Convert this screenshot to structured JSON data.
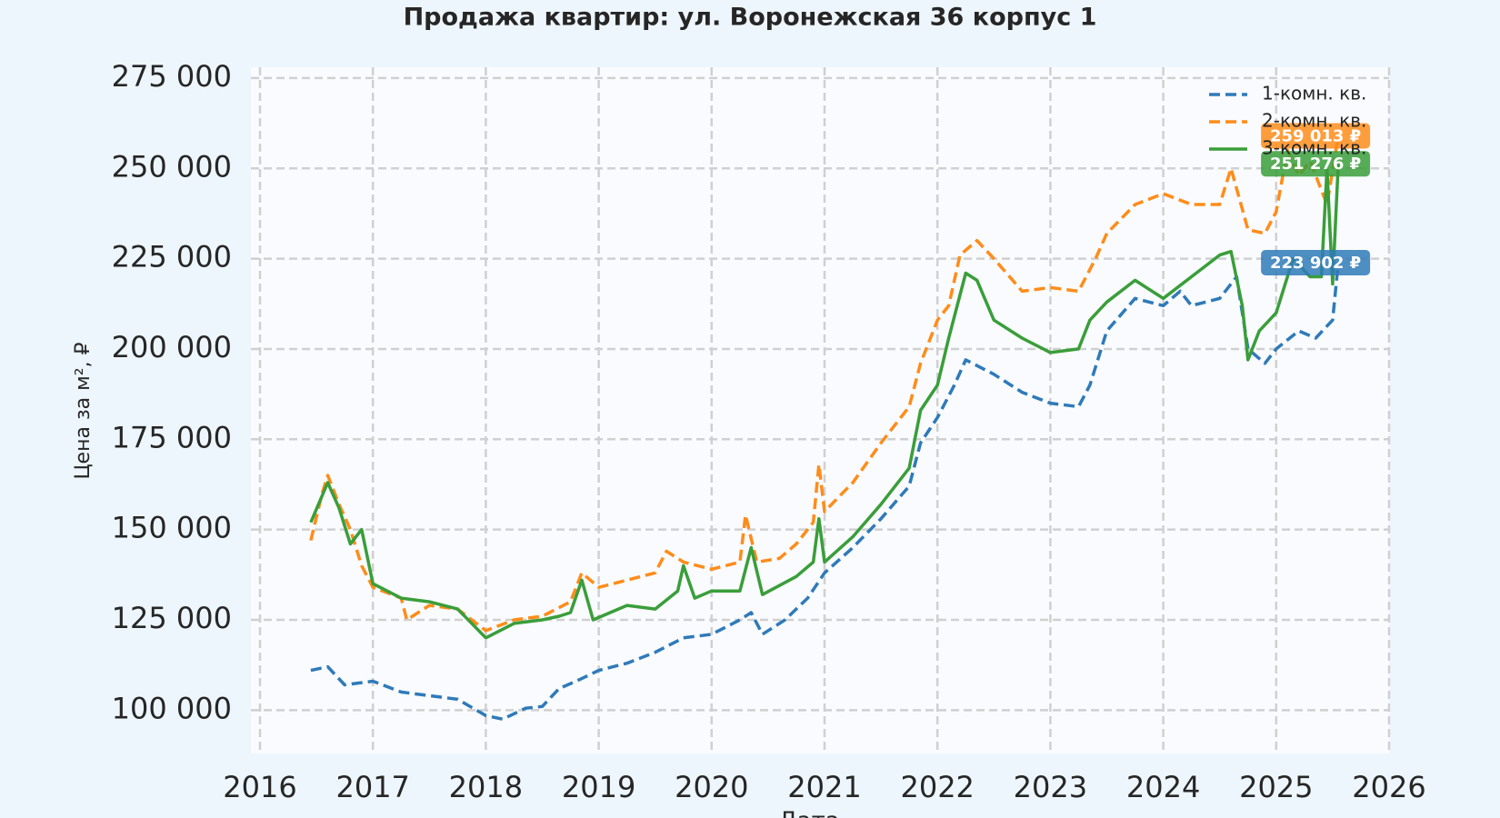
{
  "chart_data": {
    "type": "line",
    "title": "Продажа квартир: ул. Воронежская 36 корпус 1",
    "xlabel": "Дата",
    "ylabel": "Цена за м², ₽",
    "xlim": [
      2016,
      2026
    ],
    "xticks": [
      2016,
      2017,
      2018,
      2019,
      2020,
      2021,
      2022,
      2023,
      2024,
      2025,
      2026
    ],
    "ylim": [
      88000,
      278000
    ],
    "yticks": [
      {
        "value": 100000,
        "label": "100 000"
      },
      {
        "value": 125000,
        "label": "125 000"
      },
      {
        "value": 150000,
        "label": "150 000"
      },
      {
        "value": 175000,
        "label": "175 000"
      },
      {
        "value": 200000,
        "label": "200 000"
      },
      {
        "value": 225000,
        "label": "225 000"
      },
      {
        "value": 250000,
        "label": "250 000"
      },
      {
        "value": 275000,
        "label": "275 000"
      }
    ],
    "grid": true,
    "legend": "upper right",
    "series": [
      {
        "name": "1-комн. кв.",
        "color": "#2f7ab9",
        "linestyle": "dashed",
        "end_label": "223 902 ₽",
        "x": [
          2016.45,
          2016.6,
          2016.75,
          2017.0,
          2017.25,
          2017.5,
          2017.75,
          2018.0,
          2018.15,
          2018.35,
          2018.5,
          2018.65,
          2018.8,
          2019.0,
          2019.25,
          2019.5,
          2019.75,
          2020.0,
          2020.25,
          2020.35,
          2020.45,
          2020.65,
          2020.85,
          2021.0,
          2021.25,
          2021.5,
          2021.75,
          2021.85,
          2022.0,
          2022.15,
          2022.25,
          2022.5,
          2022.75,
          2023.0,
          2023.25,
          2023.35,
          2023.5,
          2023.75,
          2024.0,
          2024.15,
          2024.25,
          2024.5,
          2024.65,
          2024.75,
          2024.9,
          2025.0,
          2025.2,
          2025.35,
          2025.5,
          2025.55
        ],
        "values": [
          111000,
          112000,
          107000,
          108000,
          105000,
          104000,
          103000,
          98500,
          97500,
          100500,
          101000,
          106000,
          108000,
          111000,
          113000,
          116000,
          120000,
          121000,
          125000,
          127000,
          121000,
          125000,
          131000,
          138000,
          145000,
          153000,
          162000,
          174000,
          181000,
          190000,
          197000,
          193000,
          188000,
          185000,
          184000,
          190000,
          205000,
          214000,
          212000,
          216000,
          212000,
          214000,
          220000,
          200000,
          196000,
          200000,
          205000,
          203000,
          208000,
          223902
        ]
      },
      {
        "name": "2-комн. кв.",
        "color": "#ff8c1a",
        "linestyle": "dashed",
        "end_label": "259 013 ₽",
        "x": [
          2016.45,
          2016.55,
          2016.6,
          2016.7,
          2016.8,
          2016.9,
          2017.0,
          2017.25,
          2017.3,
          2017.5,
          2017.75,
          2018.0,
          2018.25,
          2018.5,
          2018.75,
          2018.85,
          2019.0,
          2019.25,
          2019.5,
          2019.6,
          2019.75,
          2020.0,
          2020.25,
          2020.3,
          2020.4,
          2020.6,
          2020.75,
          2020.9,
          2020.95,
          2021.0,
          2021.25,
          2021.5,
          2021.75,
          2021.85,
          2022.0,
          2022.1,
          2022.2,
          2022.35,
          2022.5,
          2022.75,
          2023.0,
          2023.25,
          2023.4,
          2023.5,
          2023.75,
          2024.0,
          2024.25,
          2024.5,
          2024.6,
          2024.75,
          2024.9,
          2025.0,
          2025.1,
          2025.2,
          2025.3,
          2025.45,
          2025.55
        ],
        "values": [
          147000,
          160000,
          165000,
          157000,
          150000,
          140000,
          134000,
          131000,
          125000,
          129000,
          128000,
          122000,
          125000,
          126000,
          130000,
          138000,
          134000,
          136000,
          138000,
          144000,
          141000,
          139000,
          141000,
          154000,
          141000,
          142000,
          146000,
          152000,
          168000,
          155000,
          163000,
          174000,
          184000,
          196000,
          208000,
          212000,
          226000,
          230000,
          225000,
          216000,
          217000,
          216000,
          225000,
          232000,
          240000,
          243000,
          240000,
          240000,
          250000,
          233000,
          232000,
          238000,
          255000,
          248000,
          252000,
          240000,
          259013
        ]
      },
      {
        "name": "3-комн. кв.",
        "color": "#3a9e3a",
        "linestyle": "solid",
        "end_label": "251 276 ₽",
        "x": [
          2016.45,
          2016.6,
          2016.7,
          2016.8,
          2016.9,
          2017.0,
          2017.25,
          2017.5,
          2017.75,
          2018.0,
          2018.25,
          2018.5,
          2018.65,
          2018.75,
          2018.85,
          2018.95,
          2019.25,
          2019.5,
          2019.7,
          2019.75,
          2019.85,
          2020.0,
          2020.25,
          2020.35,
          2020.45,
          2020.75,
          2020.9,
          2020.95,
          2021.0,
          2021.25,
          2021.5,
          2021.75,
          2021.85,
          2022.0,
          2022.1,
          2022.25,
          2022.35,
          2022.5,
          2022.75,
          2023.0,
          2023.25,
          2023.35,
          2023.5,
          2023.75,
          2024.0,
          2024.25,
          2024.5,
          2024.6,
          2024.7,
          2024.75,
          2024.85,
          2025.0,
          2025.15,
          2025.3,
          2025.4,
          2025.45,
          2025.5,
          2025.55
        ],
        "values": [
          152000,
          163000,
          156000,
          146000,
          150000,
          135000,
          131000,
          130000,
          128000,
          120000,
          124000,
          125000,
          126000,
          127000,
          136000,
          125000,
          129000,
          128000,
          133000,
          140000,
          131000,
          133000,
          133000,
          145000,
          132000,
          137000,
          141000,
          153000,
          141000,
          148000,
          157000,
          167000,
          183000,
          190000,
          203000,
          221000,
          219000,
          208000,
          203000,
          199000,
          200000,
          208000,
          213000,
          219000,
          214000,
          220000,
          226000,
          227000,
          212000,
          197000,
          205000,
          210000,
          225000,
          220000,
          220000,
          250000,
          218000,
          251276
        ]
      }
    ]
  }
}
